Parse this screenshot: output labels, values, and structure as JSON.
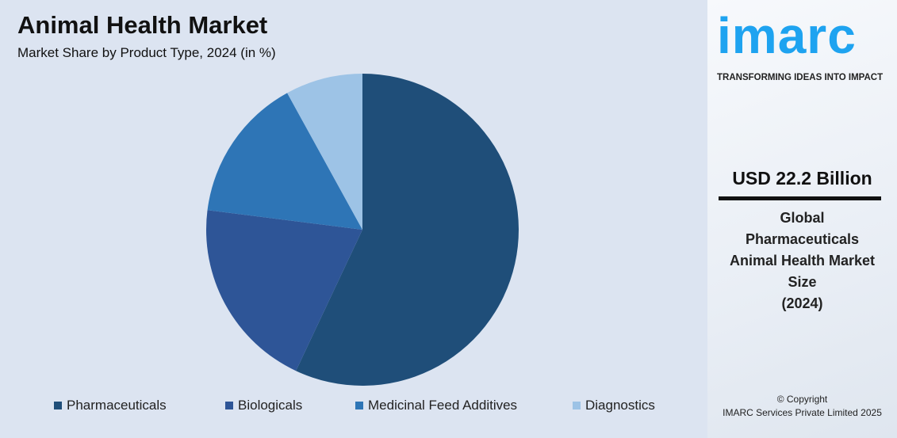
{
  "header": {
    "title": "Animal Health Market",
    "subtitle": "Market Share by Product Type, 2024 (in %)"
  },
  "chart_data": {
    "type": "pie",
    "title": "Animal Health Market",
    "subtitle": "Market Share by Product Type, 2024 (in %)",
    "categories": [
      "Pharmaceuticals",
      "Biologicals",
      "Medicinal Feed Additives",
      "Diagnostics"
    ],
    "values": [
      57,
      20,
      15,
      8
    ],
    "colors": [
      "#1f4e79",
      "#2e5597",
      "#2e75b6",
      "#9dc3e6"
    ],
    "legend": "bottom"
  },
  "brand": {
    "logo": "imarc",
    "tagline": "TRANSFORMING IDEAS INTO IMPACT",
    "logo_color": "#1ea3f0"
  },
  "side": {
    "value": "USD 22.2 Billion",
    "desc_lines": [
      "Global",
      "Pharmaceuticals",
      "Animal Health Market",
      "Size",
      "(2024)"
    ],
    "copyright": "© Copyright",
    "company": "IMARC Services Private Limited 2025"
  }
}
